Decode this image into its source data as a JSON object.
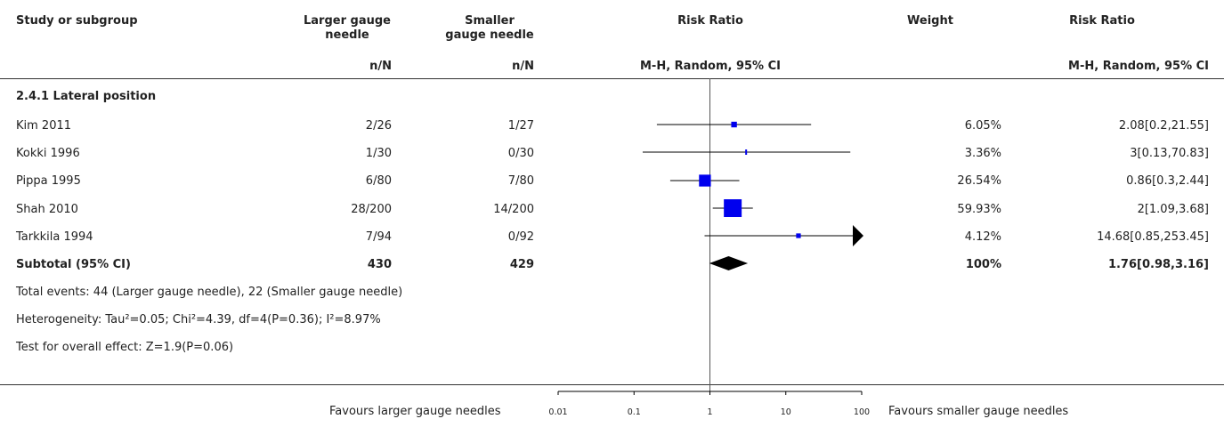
{
  "header": {
    "study": "Study or subgroup",
    "larger": "Larger gauge needle",
    "larger_line1": "Larger gauge",
    "larger_line2": "needle",
    "smaller_line1": "Smaller",
    "smaller_line2": "gauge needle",
    "risk_ratio_plot": "Risk Ratio",
    "weight": "Weight",
    "risk_ratio_text": "Risk Ratio",
    "nN_larger": "n/N",
    "nN_smaller": "n/N",
    "method_plot": "M-H, Random, 95% CI",
    "method_text": "M-H, Random, 95% CI"
  },
  "subgroup": {
    "title": "2.4.1 Lateral position"
  },
  "studies": [
    {
      "name": "Kim 2011",
      "larger": "2/26",
      "smaller": "1/27",
      "weight": "6.05%",
      "ci_text": "2.08[0.2,21.55]"
    },
    {
      "name": "Kokki 1996",
      "larger": "1/30",
      "smaller": "0/30",
      "weight": "3.36%",
      "ci_text": "3[0.13,70.83]"
    },
    {
      "name": "Pippa 1995",
      "larger": "6/80",
      "smaller": "7/80",
      "weight": "26.54%",
      "ci_text": "0.86[0.3,2.44]"
    },
    {
      "name": "Shah 2010",
      "larger": "28/200",
      "smaller": "14/200",
      "weight": "59.93%",
      "ci_text": "2[1.09,3.68]"
    },
    {
      "name": "Tarkkila 1994",
      "larger": "7/94",
      "smaller": "0/92",
      "weight": "4.12%",
      "ci_text": "14.68[0.85,253.45]"
    }
  ],
  "subtotal": {
    "label": "Subtotal (95% CI)",
    "larger": "430",
    "smaller": "429",
    "weight": "100%",
    "ci_text": "1.76[0.98,3.16]"
  },
  "notes": {
    "total_events": "Total events: 44 (Larger gauge needle), 22 (Smaller gauge needle)",
    "heterogeneity": "Heterogeneity: Tau²=0.05; Chi²=4.39, df=4(P=0.36); I²=8.97%",
    "overall_effect": "Test for overall effect: Z=1.9(P=0.06)"
  },
  "footer": {
    "favours_left": "Favours larger gauge needles",
    "favours_right": "Favours smaller gauge needles"
  },
  "colors": {
    "marker": "#0000ee",
    "line": "#000000",
    "text": "#222222"
  },
  "chart_data": {
    "type": "forest",
    "scale": "log",
    "xlim": [
      0.01,
      100
    ],
    "ticks": [
      0.01,
      0.1,
      1,
      10,
      100
    ],
    "tick_labels": [
      "0.01",
      "0.1",
      "1",
      "10",
      "100"
    ],
    "reference_line": 1,
    "studies": [
      {
        "name": "Kim 2011",
        "rr": 2.08,
        "lo": 0.2,
        "hi": 21.55,
        "weight": 6.05
      },
      {
        "name": "Kokki 1996",
        "rr": 3,
        "lo": 0.13,
        "hi": 70.83,
        "weight": 3.36
      },
      {
        "name": "Pippa 1995",
        "rr": 0.86,
        "lo": 0.3,
        "hi": 2.44,
        "weight": 26.54
      },
      {
        "name": "Shah 2010",
        "rr": 2,
        "lo": 1.09,
        "hi": 3.68,
        "weight": 59.93
      },
      {
        "name": "Tarkkila 1994",
        "rr": 14.68,
        "lo": 0.85,
        "hi": 253.45,
        "weight": 4.12
      }
    ],
    "pooled": {
      "name": "Subtotal (95% CI)",
      "rr": 1.76,
      "lo": 0.98,
      "hi": 3.16,
      "weight": 100
    }
  }
}
